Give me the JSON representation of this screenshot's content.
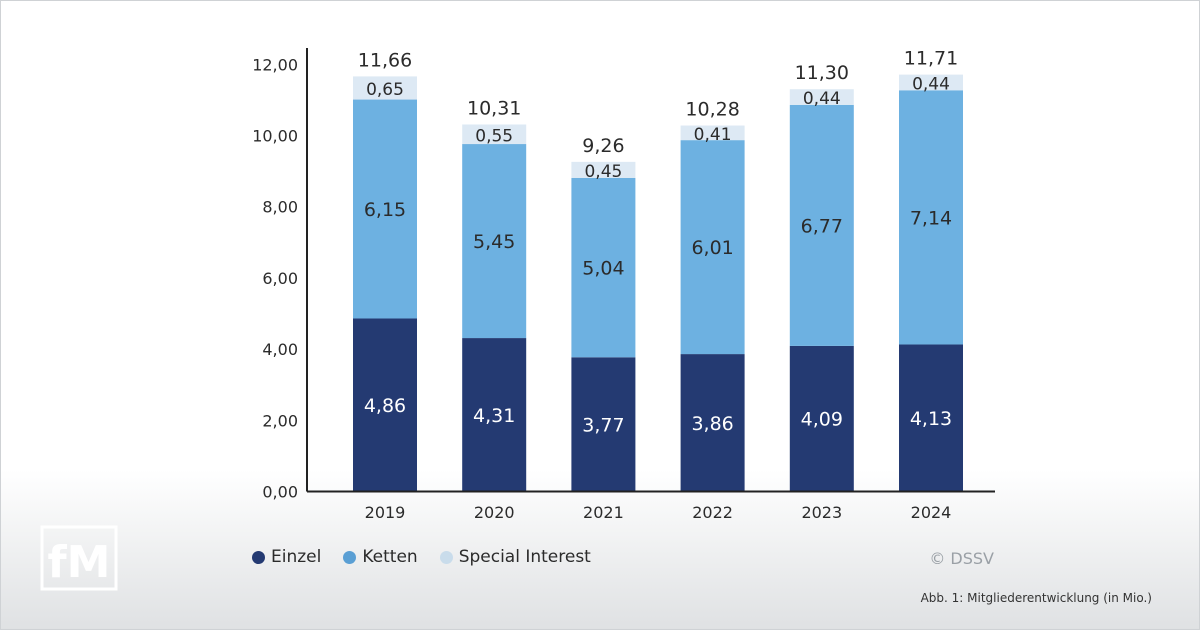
{
  "chart_data": {
    "type": "bar",
    "stacked": true,
    "categories": [
      "2019",
      "2020",
      "2021",
      "2022",
      "2023",
      "2024"
    ],
    "series": [
      {
        "name": "Einzel",
        "color": "#243a72",
        "values": [
          4.86,
          4.31,
          3.77,
          3.86,
          4.09,
          4.13
        ],
        "labels": [
          "4,86",
          "4,31",
          "3,77",
          "3,86",
          "4,09",
          "4,13"
        ]
      },
      {
        "name": "Ketten",
        "color": "#6db1e1",
        "values": [
          6.15,
          5.45,
          5.04,
          6.01,
          6.77,
          7.14
        ],
        "labels": [
          "6,15",
          "5,45",
          "5,04",
          "6,01",
          "6,77",
          "7,14"
        ]
      },
      {
        "name": "Special Interest",
        "color": "#dde9f4",
        "values": [
          0.65,
          0.55,
          0.45,
          0.41,
          0.44,
          0.44
        ],
        "labels": [
          "0,65",
          "0,55",
          "0,45",
          "0,41",
          "0,44",
          "0,44"
        ]
      }
    ],
    "totals": [
      11.66,
      10.31,
      9.26,
      10.28,
      11.3,
      11.71
    ],
    "total_labels": [
      "11,66",
      "10,31",
      "9,26",
      "10,28",
      "11,30",
      "11,71"
    ],
    "ylim": [
      0,
      12
    ],
    "yticks": [
      0,
      2,
      4,
      6,
      8,
      10,
      12
    ],
    "ytick_labels": [
      "0,00",
      "2,00",
      "4,00",
      "6,00",
      "8,00",
      "10,00",
      "12,00"
    ],
    "title": "",
    "xlabel": "",
    "ylabel": "",
    "legend_position": "bottom-left"
  },
  "legend": {
    "items": [
      {
        "label": "Einzel",
        "color": "#243a72"
      },
      {
        "label": "Ketten",
        "color": "#5a9fd4"
      },
      {
        "label": "Special Interest",
        "color": "#c9dceb"
      }
    ]
  },
  "logo": {
    "text": "fM",
    "color": "#ffffff"
  },
  "copyright": "© DSSV",
  "caption": "Abb. 1: Mitgliederentwicklung (in Mio.)"
}
